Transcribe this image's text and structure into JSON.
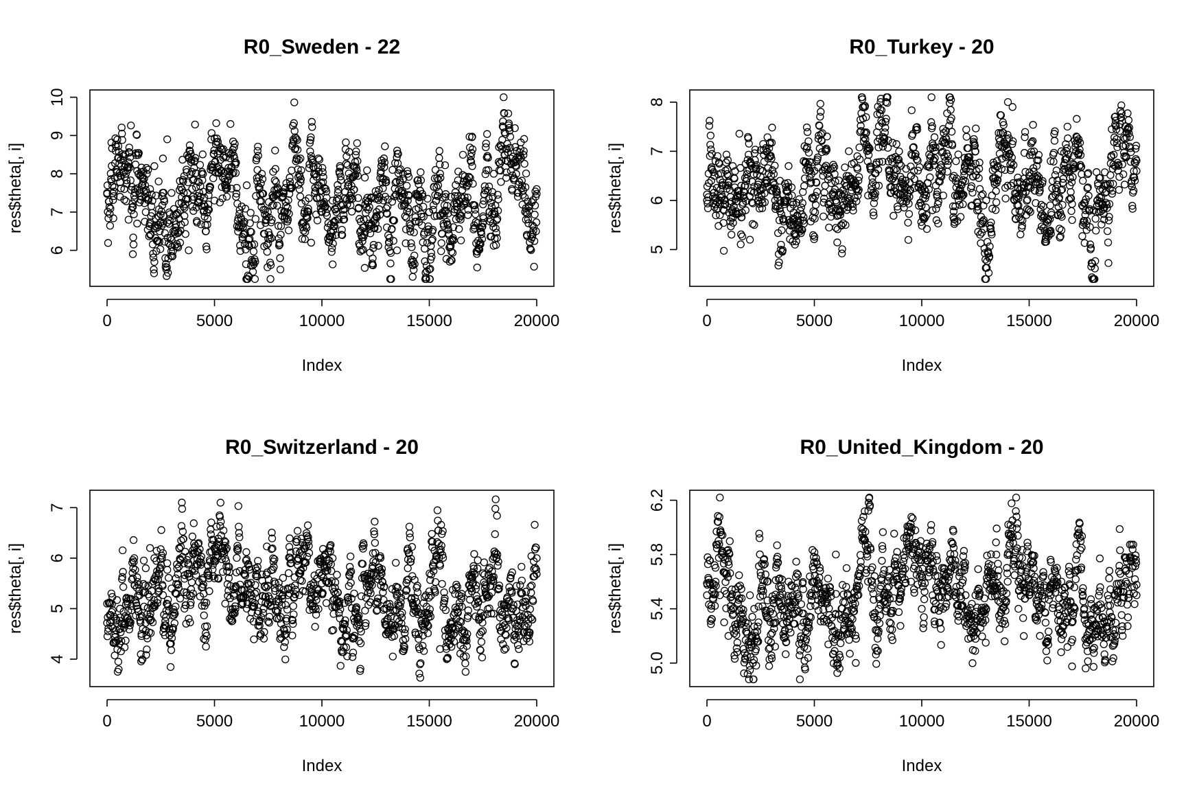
{
  "chart_data": [
    {
      "type": "scatter",
      "title": "R0_Sweden - 22",
      "xlabel": "Index",
      "ylabel": "res$theta[, i]",
      "xlim": [
        0,
        20000
      ],
      "ylim": [
        5.25,
        10.0
      ],
      "xticks": [
        0,
        5000,
        10000,
        15000,
        20000
      ],
      "xtick_labels": [
        "0",
        "5000",
        "10000",
        "15000",
        "20000"
      ],
      "yticks": [
        6,
        7,
        8,
        9,
        10
      ],
      "ytick_labels": [
        "6",
        "7",
        "8",
        "9",
        "10"
      ],
      "grid": false,
      "series": [
        {
          "x": [
            0,
            200,
            400,
            600,
            800,
            1000,
            1200,
            1400,
            1600,
            1800,
            2000,
            2200,
            2400,
            2600,
            2800,
            3000,
            3200,
            3400,
            3600,
            3800,
            4000,
            4500,
            5000,
            5500,
            6000,
            6500,
            7000,
            7500,
            8000,
            8500,
            9000,
            9500,
            10000,
            10500,
            11000,
            11500,
            12000,
            12500,
            13000,
            13500,
            14000,
            14500,
            15000,
            15500,
            16000,
            16500,
            17000,
            17500,
            18000,
            18500,
            19000,
            19500,
            20000
          ],
          "y": [
            7.5,
            7.8,
            8.6,
            7.4,
            7.6,
            6.8,
            5.9,
            6.7,
            7.4,
            7.0,
            7.6,
            8.2,
            7.8,
            8.4,
            8.9,
            7.5,
            6.6,
            6.2,
            6.9,
            6.0,
            7.4,
            7.2,
            7.3,
            7.8,
            7.4,
            7.7,
            8.1,
            6.3,
            7.5,
            7.9,
            8.4,
            6.2,
            7.0,
            7.3,
            6.8,
            8.2,
            7.9,
            6.7,
            7.1,
            6.0,
            7.3,
            7.1,
            7.0,
            6.9,
            7.4,
            6.9,
            8.2,
            7.2,
            8.0,
            8.5,
            8.7,
            6.8,
            7.6
          ]
        }
      ]
    },
    {
      "type": "scatter",
      "title": "R0_Turkey - 20",
      "xlabel": "Index",
      "ylabel": "res$theta[, i]",
      "xlim": [
        0,
        20000
      ],
      "ylim": [
        4.4,
        8.1
      ],
      "xticks": [
        0,
        5000,
        10000,
        15000,
        20000
      ],
      "xtick_labels": [
        "0",
        "5000",
        "10000",
        "15000",
        "20000"
      ],
      "yticks": [
        5,
        6,
        7,
        8
      ],
      "ytick_labels": [
        "5",
        "6",
        "7",
        "8"
      ],
      "grid": false,
      "series": [
        {
          "x": [
            0,
            200,
            400,
            600,
            800,
            1000,
            1200,
            1400,
            1600,
            1800,
            2000,
            2200,
            2400,
            2600,
            2800,
            3000,
            3200,
            3400,
            3600,
            3800,
            4000,
            4500,
            5000,
            5500,
            6000,
            6500,
            7000,
            7500,
            8000,
            8500,
            9000,
            9500,
            10000,
            10500,
            11000,
            11500,
            12000,
            12500,
            13000,
            13500,
            14000,
            14500,
            15000,
            15500,
            16000,
            16500,
            17000,
            17500,
            18000,
            18500,
            19000,
            19500,
            20000
          ],
          "y": [
            6.0,
            6.4,
            6.8,
            5.7,
            6.0,
            6.5,
            6.7,
            6.1,
            6.3,
            5.8,
            5.2,
            5.5,
            6.0,
            6.6,
            7.0,
            6.2,
            5.9,
            6.4,
            6.0,
            6.7,
            5.6,
            6.8,
            6.6,
            6.3,
            6.0,
            6.5,
            6.9,
            6.1,
            6.3,
            6.6,
            6.0,
            6.5,
            6.2,
            5.8,
            6.1,
            6.5,
            6.7,
            7.0,
            6.0,
            6.8,
            6.3,
            5.9,
            6.5,
            6.2,
            6.8,
            7.0,
            5.6,
            6.4,
            5.8,
            6.3,
            6.7,
            6.9,
            6.6
          ]
        }
      ]
    },
    {
      "type": "scatter",
      "title": "R0_Switzerland - 20",
      "xlabel": "Index",
      "ylabel": "res$theta[, i]",
      "xlim": [
        0,
        20000
      ],
      "ylim": [
        3.6,
        7.2
      ],
      "xticks": [
        0,
        5000,
        10000,
        15000,
        20000
      ],
      "xtick_labels": [
        "0",
        "5000",
        "10000",
        "15000",
        "20000"
      ],
      "yticks": [
        4,
        5,
        6,
        7
      ],
      "ytick_labels": [
        "4",
        "5",
        "6",
        "7"
      ],
      "grid": false,
      "series": [
        {
          "x": [
            0,
            200,
            400,
            600,
            800,
            1000,
            1200,
            1400,
            1600,
            1800,
            2000,
            2200,
            2400,
            2600,
            2800,
            3000,
            3200,
            3400,
            3600,
            3800,
            4000,
            4500,
            5000,
            5500,
            6000,
            6500,
            7000,
            7500,
            8000,
            8500,
            9000,
            9500,
            10000,
            10500,
            11000,
            11500,
            12000,
            12500,
            13000,
            13500,
            14000,
            14500,
            15000,
            15500,
            16000,
            16500,
            17000,
            17500,
            18000,
            18500,
            19000,
            19500,
            20000
          ],
          "y": [
            5.1,
            5.3,
            4.8,
            5.0,
            4.7,
            5.2,
            5.6,
            5.0,
            4.5,
            5.8,
            6.2,
            6.0,
            5.7,
            6.1,
            5.9,
            5.4,
            5.6,
            5.2,
            5.0,
            4.8,
            5.3,
            4.4,
            5.6,
            5.1,
            5.4,
            5.0,
            4.9,
            5.1,
            4.8,
            5.3,
            5.7,
            5.2,
            5.5,
            6.0,
            4.6,
            5.3,
            5.6,
            5.1,
            5.0,
            4.8,
            5.8,
            4.4,
            4.9,
            4.2,
            4.7,
            5.2,
            5.5,
            5.7,
            4.9,
            5.0,
            4.7,
            5.2,
            6.0
          ]
        }
      ]
    },
    {
      "type": "scatter",
      "title": "R0_United_Kingdom - 20",
      "xlabel": "Index",
      "ylabel": "res$theta[, i]",
      "xlim": [
        0,
        20000
      ],
      "ylim": [
        4.88,
        6.22
      ],
      "xticks": [
        0,
        5000,
        10000,
        15000,
        20000
      ],
      "xtick_labels": [
        "0",
        "5000",
        "10000",
        "15000",
        "20000"
      ],
      "yticks": [
        5.0,
        5.4,
        5.8,
        6.2
      ],
      "ytick_labels": [
        "5.0",
        "5.4",
        "5.8",
        "6.2"
      ],
      "grid": false,
      "series": [
        {
          "x": [
            0,
            200,
            400,
            600,
            800,
            1000,
            1200,
            1400,
            1600,
            1800,
            2000,
            2200,
            2400,
            2600,
            2800,
            3000,
            3200,
            3400,
            3600,
            3800,
            4000,
            4500,
            5000,
            5500,
            6000,
            6500,
            7000,
            7500,
            8000,
            8500,
            9000,
            9500,
            10000,
            10500,
            11000,
            11500,
            12000,
            12500,
            13000,
            13500,
            14000,
            14500,
            15000,
            15500,
            16000,
            16500,
            17000,
            17500,
            18000,
            18500,
            19000,
            19500,
            20000
          ],
          "y": [
            5.5,
            5.4,
            5.6,
            5.5,
            5.3,
            5.2,
            5.4,
            5.5,
            5.4,
            5.3,
            5.5,
            5.4,
            5.3,
            5.5,
            5.6,
            5.4,
            5.3,
            5.5,
            5.4,
            5.6,
            5.5,
            5.3,
            5.6,
            5.5,
            5.8,
            5.7,
            5.5,
            5.6,
            5.4,
            5.3,
            5.5,
            5.6,
            5.4,
            5.5,
            5.4,
            5.5,
            5.3,
            5.5,
            5.4,
            5.5,
            5.6,
            5.4,
            5.5,
            5.2,
            5.5,
            5.6,
            5.3,
            5.5,
            5.4,
            5.3,
            5.5,
            5.6,
            5.5
          ]
        }
      ]
    }
  ]
}
